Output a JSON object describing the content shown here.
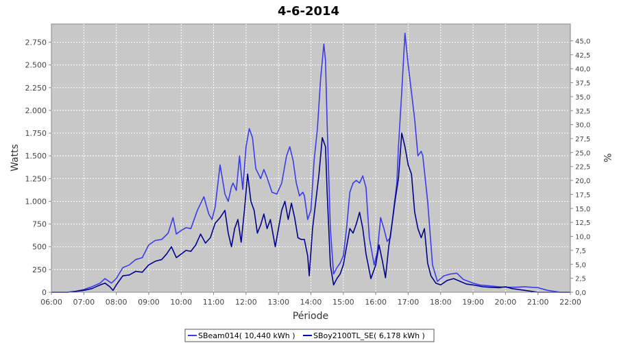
{
  "chart_data": {
    "type": "line",
    "title": "4-6-2014",
    "xlabel": "Période",
    "ylabel": "Watts",
    "y2label": "%",
    "background": "#c8c8c8",
    "grid": true,
    "legend_position": "bottom",
    "x_ticks": [
      "06:00",
      "07:00",
      "08:00",
      "09:00",
      "10:00",
      "11:00",
      "12:00",
      "13:00",
      "14:00",
      "15:00",
      "16:00",
      "17:00",
      "18:00",
      "19:00",
      "20:00",
      "21:00",
      "22:00"
    ],
    "xlim": [
      6.0,
      22.0
    ],
    "ylim": [
      0,
      2950
    ],
    "y_ticks": [
      0,
      250,
      500,
      750,
      1000,
      1250,
      1500,
      1750,
      2000,
      2250,
      2500,
      2750
    ],
    "y_tick_labels": [
      "0",
      "250",
      "500",
      "750",
      "1.000",
      "1.250",
      "1.500",
      "1.750",
      "2.000",
      "2.250",
      "2.500",
      "2.750"
    ],
    "y2lim": [
      0,
      48.0
    ],
    "y2_ticks": [
      0,
      2.5,
      5,
      7.5,
      10,
      12.5,
      15,
      17.5,
      20,
      22.5,
      25,
      27.5,
      30,
      32.5,
      35,
      37.5,
      40,
      42.5,
      45
    ],
    "y2_tick_labels": [
      "0,0",
      "2,5",
      "5,0",
      "7,5",
      "10,0",
      "12,5",
      "15,0",
      "17,5",
      "20,0",
      "22,5",
      "25,0",
      "27,5",
      "30,0",
      "32,5",
      "35,0",
      "37,5",
      "40,0",
      "42,5",
      "45,0"
    ],
    "series": [
      {
        "name": "SBeam014( 10,440 kWh )",
        "color": "#3a3ae8",
        "points": [
          [
            6.0,
            0
          ],
          [
            6.5,
            0
          ],
          [
            6.75,
            10
          ],
          [
            7.0,
            30
          ],
          [
            7.25,
            60
          ],
          [
            7.5,
            100
          ],
          [
            7.65,
            150
          ],
          [
            7.85,
            100
          ],
          [
            8.0,
            150
          ],
          [
            8.2,
            270
          ],
          [
            8.4,
            300
          ],
          [
            8.6,
            360
          ],
          [
            8.8,
            380
          ],
          [
            9.0,
            520
          ],
          [
            9.2,
            570
          ],
          [
            9.4,
            580
          ],
          [
            9.6,
            650
          ],
          [
            9.75,
            820
          ],
          [
            9.85,
            640
          ],
          [
            10.0,
            680
          ],
          [
            10.15,
            710
          ],
          [
            10.3,
            700
          ],
          [
            10.5,
            900
          ],
          [
            10.7,
            1050
          ],
          [
            10.85,
            860
          ],
          [
            10.95,
            800
          ],
          [
            11.05,
            940
          ],
          [
            11.2,
            1400
          ],
          [
            11.35,
            1080
          ],
          [
            11.45,
            1000
          ],
          [
            11.55,
            1160
          ],
          [
            11.6,
            1200
          ],
          [
            11.7,
            1120
          ],
          [
            11.8,
            1500
          ],
          [
            11.9,
            1130
          ],
          [
            12.0,
            1600
          ],
          [
            12.1,
            1800
          ],
          [
            12.2,
            1700
          ],
          [
            12.3,
            1360
          ],
          [
            12.45,
            1250
          ],
          [
            12.55,
            1350
          ],
          [
            12.65,
            1260
          ],
          [
            12.8,
            1100
          ],
          [
            12.95,
            1080
          ],
          [
            13.1,
            1200
          ],
          [
            13.25,
            1500
          ],
          [
            13.35,
            1600
          ],
          [
            13.45,
            1450
          ],
          [
            13.55,
            1200
          ],
          [
            13.65,
            1060
          ],
          [
            13.75,
            1100
          ],
          [
            13.8,
            1060
          ],
          [
            13.9,
            800
          ],
          [
            14.0,
            900
          ],
          [
            14.1,
            1450
          ],
          [
            14.2,
            1800
          ],
          [
            14.3,
            2350
          ],
          [
            14.4,
            2730
          ],
          [
            14.45,
            2550
          ],
          [
            14.5,
            1850
          ],
          [
            14.6,
            700
          ],
          [
            14.7,
            200
          ],
          [
            14.8,
            270
          ],
          [
            14.9,
            320
          ],
          [
            15.0,
            400
          ],
          [
            15.1,
            700
          ],
          [
            15.2,
            1100
          ],
          [
            15.3,
            1200
          ],
          [
            15.4,
            1230
          ],
          [
            15.5,
            1200
          ],
          [
            15.6,
            1280
          ],
          [
            15.7,
            1150
          ],
          [
            15.8,
            600
          ],
          [
            15.95,
            300
          ],
          [
            16.05,
            450
          ],
          [
            16.15,
            820
          ],
          [
            16.25,
            700
          ],
          [
            16.35,
            560
          ],
          [
            16.45,
            600
          ],
          [
            16.55,
            900
          ],
          [
            16.65,
            1200
          ],
          [
            16.7,
            1600
          ],
          [
            16.8,
            2200
          ],
          [
            16.9,
            2850
          ],
          [
            17.0,
            2500
          ],
          [
            17.1,
            2200
          ],
          [
            17.2,
            1900
          ],
          [
            17.3,
            1500
          ],
          [
            17.4,
            1550
          ],
          [
            17.45,
            1500
          ],
          [
            17.6,
            1000
          ],
          [
            17.75,
            300
          ],
          [
            17.9,
            120
          ],
          [
            18.1,
            180
          ],
          [
            18.3,
            200
          ],
          [
            18.5,
            210
          ],
          [
            18.7,
            140
          ],
          [
            19.0,
            100
          ],
          [
            19.2,
            80
          ],
          [
            19.5,
            70
          ],
          [
            19.8,
            60
          ],
          [
            20.0,
            55
          ],
          [
            20.3,
            55
          ],
          [
            20.6,
            60
          ],
          [
            21.0,
            50
          ],
          [
            21.3,
            20
          ],
          [
            21.7,
            0
          ],
          [
            22.0,
            0
          ]
        ]
      },
      {
        "name": "SBoy2100TL_SE( 6,178 kWh )",
        "color": "#00008b",
        "points": [
          [
            6.0,
            0
          ],
          [
            6.5,
            0
          ],
          [
            7.0,
            20
          ],
          [
            7.25,
            40
          ],
          [
            7.5,
            80
          ],
          [
            7.65,
            100
          ],
          [
            7.8,
            60
          ],
          [
            7.9,
            20
          ],
          [
            8.0,
            80
          ],
          [
            8.2,
            180
          ],
          [
            8.4,
            190
          ],
          [
            8.6,
            230
          ],
          [
            8.8,
            220
          ],
          [
            9.0,
            300
          ],
          [
            9.2,
            340
          ],
          [
            9.4,
            360
          ],
          [
            9.55,
            420
          ],
          [
            9.7,
            500
          ],
          [
            9.85,
            380
          ],
          [
            10.0,
            420
          ],
          [
            10.15,
            460
          ],
          [
            10.3,
            450
          ],
          [
            10.45,
            520
          ],
          [
            10.6,
            640
          ],
          [
            10.75,
            540
          ],
          [
            10.9,
            600
          ],
          [
            11.05,
            760
          ],
          [
            11.2,
            820
          ],
          [
            11.35,
            900
          ],
          [
            11.45,
            650
          ],
          [
            11.55,
            500
          ],
          [
            11.65,
            700
          ],
          [
            11.75,
            800
          ],
          [
            11.85,
            550
          ],
          [
            11.95,
            900
          ],
          [
            12.05,
            1300
          ],
          [
            12.15,
            1000
          ],
          [
            12.25,
            900
          ],
          [
            12.35,
            650
          ],
          [
            12.45,
            740
          ],
          [
            12.55,
            860
          ],
          [
            12.65,
            700
          ],
          [
            12.75,
            800
          ],
          [
            12.9,
            500
          ],
          [
            13.0,
            700
          ],
          [
            13.1,
            900
          ],
          [
            13.2,
            1000
          ],
          [
            13.3,
            800
          ],
          [
            13.4,
            980
          ],
          [
            13.5,
            820
          ],
          [
            13.6,
            600
          ],
          [
            13.7,
            580
          ],
          [
            13.8,
            580
          ],
          [
            13.9,
            400
          ],
          [
            13.95,
            180
          ],
          [
            14.05,
            700
          ],
          [
            14.15,
            1000
          ],
          [
            14.25,
            1300
          ],
          [
            14.35,
            1700
          ],
          [
            14.45,
            1600
          ],
          [
            14.5,
            1100
          ],
          [
            14.6,
            300
          ],
          [
            14.7,
            80
          ],
          [
            14.8,
            150
          ],
          [
            14.9,
            200
          ],
          [
            15.0,
            300
          ],
          [
            15.1,
            500
          ],
          [
            15.2,
            700
          ],
          [
            15.3,
            650
          ],
          [
            15.4,
            750
          ],
          [
            15.5,
            880
          ],
          [
            15.6,
            700
          ],
          [
            15.7,
            420
          ],
          [
            15.85,
            150
          ],
          [
            16.0,
            300
          ],
          [
            16.1,
            520
          ],
          [
            16.2,
            350
          ],
          [
            16.3,
            160
          ],
          [
            16.4,
            500
          ],
          [
            16.5,
            750
          ],
          [
            16.6,
            1020
          ],
          [
            16.7,
            1250
          ],
          [
            16.8,
            1750
          ],
          [
            16.9,
            1600
          ],
          [
            17.0,
            1400
          ],
          [
            17.1,
            1300
          ],
          [
            17.2,
            880
          ],
          [
            17.3,
            700
          ],
          [
            17.4,
            600
          ],
          [
            17.5,
            700
          ],
          [
            17.6,
            320
          ],
          [
            17.7,
            180
          ],
          [
            17.85,
            100
          ],
          [
            18.0,
            80
          ],
          [
            18.2,
            130
          ],
          [
            18.4,
            150
          ],
          [
            18.6,
            120
          ],
          [
            18.8,
            90
          ],
          [
            19.0,
            80
          ],
          [
            19.3,
            60
          ],
          [
            19.5,
            55
          ],
          [
            19.8,
            50
          ],
          [
            20.0,
            60
          ],
          [
            20.2,
            40
          ],
          [
            20.4,
            30
          ],
          [
            20.6,
            20
          ],
          [
            21.0,
            0
          ],
          [
            22.0,
            0
          ]
        ]
      }
    ]
  }
}
